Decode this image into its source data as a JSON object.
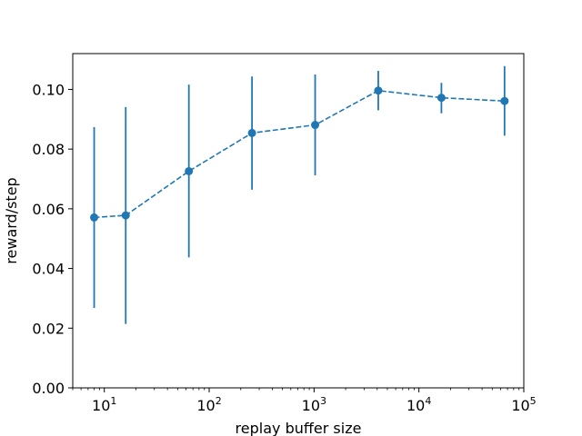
{
  "chart_data": {
    "type": "line",
    "title": "",
    "xlabel": "replay buffer size",
    "ylabel": "reward/step",
    "xscale": "log",
    "xlim": [
      5,
      100000
    ],
    "ylim": [
      0,
      0.112
    ],
    "grid": false,
    "legend": "none",
    "line_style": "dashed",
    "marker": "circle",
    "color": "#1f77b4",
    "x_ticks": [
      {
        "value": 10,
        "base": "10",
        "exp": "1"
      },
      {
        "value": 100,
        "base": "10",
        "exp": "2"
      },
      {
        "value": 1000,
        "base": "10",
        "exp": "3"
      },
      {
        "value": 10000,
        "base": "10",
        "exp": "4"
      },
      {
        "value": 100000,
        "base": "10",
        "exp": "5"
      }
    ],
    "y_ticks": [
      {
        "value": 0.0,
        "label": "0.00"
      },
      {
        "value": 0.02,
        "label": "0.02"
      },
      {
        "value": 0.04,
        "label": "0.04"
      },
      {
        "value": 0.06,
        "label": "0.06"
      },
      {
        "value": 0.08,
        "label": "0.08"
      },
      {
        "value": 0.1,
        "label": "0.10"
      }
    ],
    "series": [
      {
        "points": [
          {
            "x": 8,
            "y": 0.0571,
            "err_low": 0.0268,
            "err_high": 0.0874
          },
          {
            "x": 16,
            "y": 0.0578,
            "err_low": 0.0214,
            "err_high": 0.0941
          },
          {
            "x": 64,
            "y": 0.0726,
            "err_low": 0.0437,
            "err_high": 0.1016
          },
          {
            "x": 256,
            "y": 0.0854,
            "err_low": 0.0664,
            "err_high": 0.1043
          },
          {
            "x": 1024,
            "y": 0.0881,
            "err_low": 0.0712,
            "err_high": 0.105
          },
          {
            "x": 4096,
            "y": 0.0996,
            "err_low": 0.093,
            "err_high": 0.1062
          },
          {
            "x": 16384,
            "y": 0.0972,
            "err_low": 0.092,
            "err_high": 0.1022
          },
          {
            "x": 65536,
            "y": 0.0961,
            "err_low": 0.0845,
            "err_high": 0.1078
          }
        ]
      }
    ]
  }
}
